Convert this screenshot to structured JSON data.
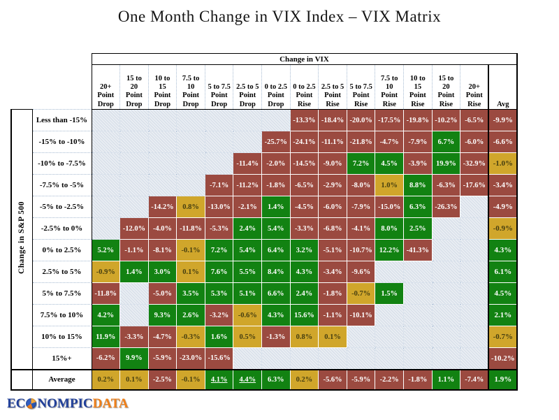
{
  "title": "One Month Change in VIX Index – VIX Matrix",
  "logo": {
    "prefix": "EC",
    "middle": "NOMPIC",
    "suffix": "DATA"
  },
  "chart_data": {
    "type": "heatmap",
    "title": "One Month Change in VIX Index – VIX Matrix",
    "col_group_label": "Change in VIX",
    "row_group_label": "Change in S&P 500",
    "avg_col_label": "Avg",
    "avg_row_label": "Average",
    "columns": [
      {
        "label": "20+ Point Drop",
        "lines": [
          "20+",
          "Point",
          "Drop"
        ]
      },
      {
        "label": "15 to 20 Point Drop",
        "lines": [
          "15 to",
          "20",
          "Point",
          "Drop"
        ]
      },
      {
        "label": "10 to 15 Point Drop",
        "lines": [
          "10 to",
          "15",
          "Point",
          "Drop"
        ]
      },
      {
        "label": "7.5 to 10 Point Drop",
        "lines": [
          "7.5 to",
          "10",
          "Point",
          "Drop"
        ]
      },
      {
        "label": "5 to 7.5 Point Drop",
        "lines": [
          "5 to 7.5",
          "Point",
          "Drop"
        ]
      },
      {
        "label": "2.5 to 5 Point Drop",
        "lines": [
          "2.5 to 5",
          "Point",
          "Drop"
        ]
      },
      {
        "label": "0 to 2.5 Point Drop",
        "lines": [
          "0 to 2.5",
          "Point",
          "Drop"
        ]
      },
      {
        "label": "0 to 2.5 Point Rise",
        "lines": [
          "0 to 2.5",
          "Point",
          "Rise"
        ]
      },
      {
        "label": "2.5 to 5 Point Rise",
        "lines": [
          "2.5 to 5",
          "Point",
          "Rise"
        ]
      },
      {
        "label": "5 to 7.5 Point Rise",
        "lines": [
          "5 to 7.5",
          "Point",
          "Rise"
        ]
      },
      {
        "label": "7.5 to 10 Point Rise",
        "lines": [
          "7.5 to",
          "10",
          "Point",
          "Rise"
        ]
      },
      {
        "label": "10 to 15 Point Rise",
        "lines": [
          "10 to",
          "15",
          "Point",
          "Rise"
        ]
      },
      {
        "label": "15 to 20 Point Rise",
        "lines": [
          "15 to",
          "20",
          "Point",
          "Rise"
        ]
      },
      {
        "label": "20+ Point Rise",
        "lines": [
          "20+",
          "Point",
          "Rise"
        ]
      }
    ],
    "rows": [
      "Less than -15%",
      "-15% to -10%",
      "-10% to -7.5%",
      "-7.5% to -5%",
      "-5% to -2.5%",
      "-2.5% to 0%",
      "0% to 2.5%",
      "2.5% to 5%",
      "5% to 7.5%",
      "7.5% to 10%",
      "10% to 15%",
      "15%+"
    ],
    "cells": [
      [
        null,
        null,
        null,
        null,
        null,
        null,
        null,
        -13.3,
        -18.4,
        -20.0,
        -17.5,
        -19.8,
        -10.2,
        -6.5
      ],
      [
        null,
        null,
        null,
        null,
        null,
        null,
        -25.7,
        -24.1,
        -11.1,
        -21.8,
        -4.7,
        -7.9,
        6.7,
        -6.0
      ],
      [
        null,
        null,
        null,
        null,
        null,
        -11.4,
        -2.0,
        -14.5,
        -9.0,
        7.2,
        4.5,
        -3.9,
        19.9,
        -32.9
      ],
      [
        null,
        null,
        null,
        null,
        -7.1,
        -11.2,
        -1.8,
        -6.5,
        -2.9,
        -8.0,
        1.0,
        8.8,
        -6.3,
        -17.6
      ],
      [
        null,
        null,
        -14.2,
        0.8,
        -13.0,
        -2.1,
        1.4,
        -4.5,
        -6.0,
        -7.9,
        -15.0,
        6.3,
        -26.3,
        null
      ],
      [
        null,
        -12.0,
        -4.0,
        -11.8,
        -5.3,
        2.4,
        5.4,
        -3.3,
        -6.8,
        -4.1,
        8.0,
        2.5,
        null,
        null
      ],
      [
        5.2,
        -1.1,
        -8.1,
        -0.1,
        7.2,
        5.4,
        6.4,
        3.2,
        -5.1,
        -10.7,
        12.2,
        -41.3,
        null,
        null
      ],
      [
        -0.9,
        1.4,
        3.0,
        0.1,
        7.6,
        5.5,
        8.4,
        4.3,
        -3.4,
        -9.6,
        null,
        null,
        null,
        null
      ],
      [
        -11.8,
        null,
        -5.0,
        3.5,
        5.3,
        5.1,
        6.6,
        2.4,
        -1.8,
        -0.7,
        1.5,
        null,
        null,
        null
      ],
      [
        4.2,
        null,
        9.3,
        2.6,
        -3.2,
        -0.6,
        4.3,
        15.6,
        -1.1,
        -10.1,
        null,
        null,
        null,
        null
      ],
      [
        11.9,
        -3.3,
        -4.7,
        -0.3,
        1.6,
        0.5,
        -1.3,
        0.8,
        0.1,
        null,
        null,
        null,
        null,
        null
      ],
      [
        -6.2,
        9.9,
        -5.9,
        -23.0,
        -15.6,
        null,
        null,
        null,
        null,
        null,
        null,
        null,
        null,
        null
      ]
    ],
    "row_avg": [
      -9.9,
      -6.6,
      -1.0,
      -3.4,
      -4.9,
      -0.9,
      4.3,
      6.1,
      4.5,
      2.1,
      -0.7,
      -10.2
    ],
    "col_avg": [
      0.2,
      0.1,
      -2.5,
      -0.1,
      4.1,
      4.4,
      6.3,
      0.2,
      -5.6,
      -5.9,
      -2.2,
      -1.8,
      1.1,
      -7.4
    ],
    "overall_avg": 1.9,
    "underlined_avg_cols": [
      4,
      5
    ],
    "colors": {
      "positive": "#128212",
      "negative": "#9B4A40",
      "neutral": "#D0A62B",
      "neutral_text": "#453e10",
      "empty": "#dbe2eb"
    },
    "color_rule": "green if value > 1.0, red if value < -1.0, gold otherwise",
    "legend_position": "none",
    "grid": true
  }
}
